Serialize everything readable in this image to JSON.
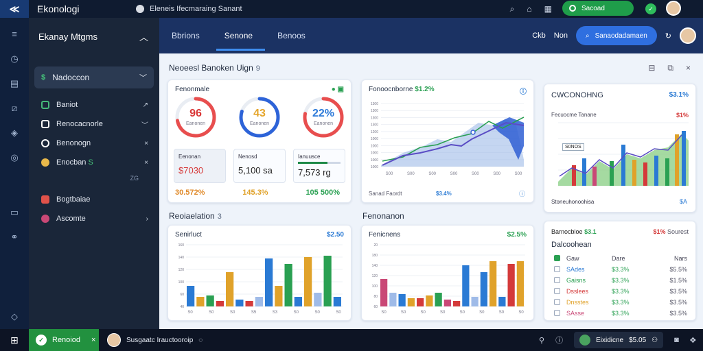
{
  "topbar": {
    "app_title": "Ekonologi",
    "notification": "Eleneis Ifecmaraing Sanant",
    "green_button": "Sacoad"
  },
  "sidebar": {
    "header": "Ekanay Mtgms",
    "active_item": "Nadoccon",
    "items": [
      {
        "label": "Baniot",
        "icon": "chart-icon",
        "chev": "chevron-right-icon",
        "color": "#46b87a"
      },
      {
        "label": "Renocacnorle",
        "icon": "mail-icon",
        "chev": "chevron-down-icon",
        "color": "#ffffff"
      },
      {
        "label": "Benonogn",
        "icon": "lock-icon",
        "chev": "close-icon",
        "color": "#ffffff"
      },
      {
        "label": "Enocban",
        "suffix": "S",
        "icon": "user-icon",
        "chev": "close-icon",
        "color": "#e8b84a"
      }
    ],
    "note": "ZG",
    "items2": [
      {
        "label": "Bogtbaiae",
        "icon": "grid-icon",
        "color": "#e0524a"
      },
      {
        "label": "Ascomte",
        "icon": "circle-icon",
        "color": "#c94876"
      }
    ]
  },
  "header": {
    "tabs": [
      "Bbrions",
      "Senone",
      "Benoos"
    ],
    "active_tab": 1,
    "right_text_1": "Ckb",
    "right_text_2": "Non",
    "blue_button": "Sanaodadamaen"
  },
  "main": {
    "title": "Neoeesl Banoken Uign",
    "title_num": "9"
  },
  "kpi_card": {
    "title": "Fenonmale",
    "gauges": [
      {
        "value": "96",
        "sub": "Eanonen",
        "color": "#d93636",
        "fraction": 0.72,
        "ring": [
          "#e84e4e",
          "#6cc06c",
          "#f0a43a"
        ]
      },
      {
        "value": "43",
        "sub": "Eanonen",
        "color": "#e5a52b",
        "fraction": 0.8,
        "ring": [
          "#2d63d8",
          "#2d63d8",
          "#2d63d8"
        ]
      },
      {
        "value": "22%",
        "sub": "Eanonen",
        "color": "#2c7ad9",
        "fraction": 0.78,
        "ring": [
          "#e84e4e",
          "#f0a43a",
          "#2aa052"
        ]
      }
    ],
    "minis": [
      {
        "label": "Eenonan",
        "value": "$7030",
        "color": "#d63a3a"
      },
      {
        "label": "Nenosd",
        "value": "5,100 sa",
        "color": "#222222"
      },
      {
        "label": "Ianuusce",
        "value": "7,573 rg",
        "color": "#222222",
        "progress": 0.7
      }
    ],
    "pcts": [
      {
        "text": "30.572%",
        "color": "#e08a2a"
      },
      {
        "text": "145.3%",
        "color": "#e0a22a"
      },
      {
        "text": "105 500%",
        "color": "#2aa052"
      }
    ]
  },
  "line_card": {
    "title": "Fonoocnborne",
    "value": "$1.2%",
    "value_color": "#2aa052",
    "foot_left": "Sanad Faordt",
    "foot_mid": "$3.4%",
    "x_labels": [
      "S00",
      "S00",
      "S00",
      "S00",
      "S00",
      "S00",
      "S00"
    ],
    "y_labels": [
      "1300",
      "1300",
      "1300",
      "1300",
      "1200",
      "1000",
      "1000",
      "1000",
      "1000",
      "1000"
    ]
  },
  "right_top": {
    "title": "CWCONOHNG",
    "value": "$3.1%",
    "sub_title": "Fecuocme Tanane",
    "sub_value": "$1%",
    "tooltip": "S0NOS",
    "foot_left": "Stoneuhonoohisa",
    "foot_right": "$A"
  },
  "sections": {
    "left": {
      "label": "Reoiaelation",
      "num": "3"
    },
    "mid": {
      "label": "Fenonanon"
    }
  },
  "bar_card_1": {
    "title": "Senirluct",
    "value": "$2.50",
    "x_labels": [
      "S0",
      "S0",
      "S0",
      "S5",
      "S3",
      "S0",
      "S0",
      "S0"
    ],
    "y_labels": [
      "160",
      "140",
      "120",
      "100",
      "60",
      "40"
    ]
  },
  "bar_card_2": {
    "title": "Fenicnens",
    "value": "$2.5%",
    "x_labels": [
      "S0",
      "S0",
      "S0",
      "S0",
      "S0",
      "S0",
      "S0",
      "S0"
    ],
    "y_labels": [
      "20",
      "180",
      "140",
      "120",
      "100",
      "80",
      "60"
    ]
  },
  "list_card": {
    "title": "Barnocbloe",
    "title_val": "$3.1",
    "right_a": "$1%",
    "right_b": "Sourest",
    "sub_title": "Dalcoohean",
    "header": [
      "Gaw",
      "Dare",
      "Nars"
    ],
    "rows": [
      {
        "name": "SAdes",
        "a": "$3.3%",
        "b": "$5.5%",
        "color": "#2a7ad4"
      },
      {
        "name": "Gaisns",
        "a": "$3.3%",
        "b": "$1.5%",
        "color": "#2aa052"
      },
      {
        "name": "Dsslees",
        "a": "$3.3%",
        "b": "$3.5%",
        "color": "#d43a3a"
      },
      {
        "name": "Dnsstes",
        "a": "$3.3%",
        "b": "$3.5%",
        "color": "#e0a22a"
      },
      {
        "name": "SAsse",
        "a": "$3.3%",
        "b": "$3.5%",
        "color": "#c94876"
      }
    ]
  },
  "taskbar": {
    "green_task": "Renoiod",
    "task_item": "Susgaatc Irauctooroip",
    "tray_app": "Eixidicne",
    "tray_app_val": "$5.05"
  },
  "colors": {
    "accent_blue": "#2f6fe0",
    "accent_green": "#1f9d4a",
    "header_bg": "#1b3263",
    "sidebar_bg": "#1a2639"
  }
}
